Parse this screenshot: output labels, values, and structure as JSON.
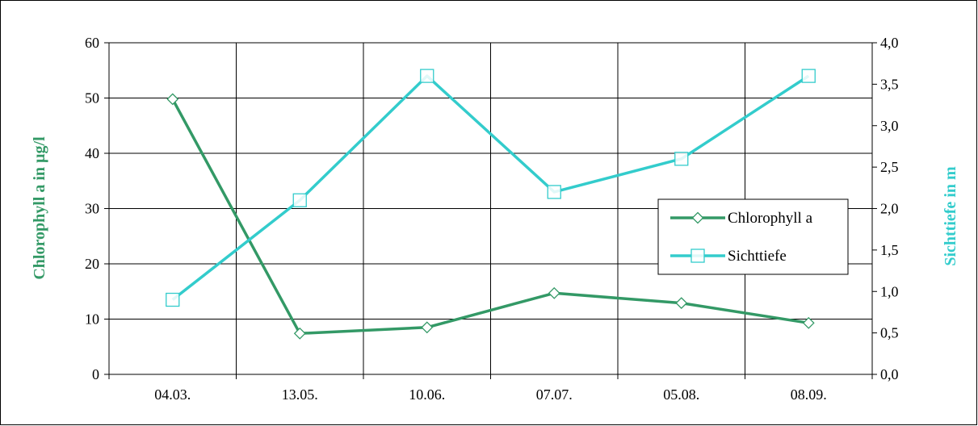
{
  "chart_data": {
    "type": "line",
    "categories": [
      "04.03.",
      "13.05.",
      "10.06.",
      "07.07.",
      "05.08.",
      "08.09."
    ],
    "series": [
      {
        "name": "Chlorophyll a",
        "axis": "left",
        "marker": "diamond",
        "color": "#339966",
        "values": [
          49.8,
          7.4,
          8.5,
          14.7,
          12.9,
          9.3
        ]
      },
      {
        "name": "Sichttiefe",
        "axis": "right",
        "marker": "square",
        "color": "#33CCCC",
        "values": [
          0.9,
          2.1,
          3.6,
          2.2,
          2.6,
          3.6
        ]
      }
    ],
    "ylabel": "Chlorophyll a in µg/l",
    "ylabel_right": "Sichttiefe in m",
    "ylim": [
      0,
      60
    ],
    "ylim_right": [
      0,
      4
    ],
    "yticks": [
      "0",
      "10",
      "20",
      "30",
      "40",
      "50",
      "60"
    ],
    "yticks_right": [
      "0,0",
      "0,5",
      "1,0",
      "1,5",
      "2,0",
      "2,5",
      "3,0",
      "3,5",
      "4,0"
    ],
    "grid": true,
    "legend_position": "right"
  }
}
